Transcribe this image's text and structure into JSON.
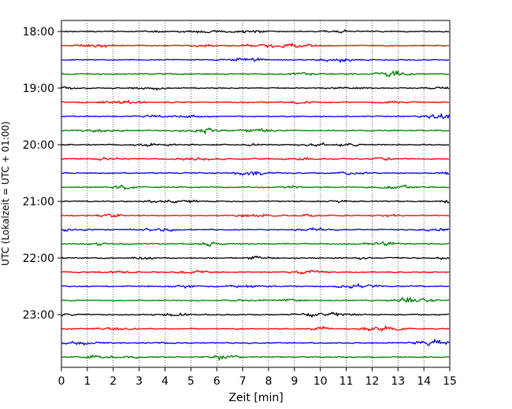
{
  "chart_data": {
    "type": "line",
    "title": "",
    "xlabel": "Zeit  [min]",
    "ylabel": "UTC (Lokalzeit = UTC + 01:00)",
    "xlim": [
      0,
      15
    ],
    "x_ticks": [
      "0",
      "1",
      "2",
      "3",
      "4",
      "5",
      "6",
      "7",
      "8",
      "9",
      "10",
      "11",
      "12",
      "13",
      "14",
      "15"
    ],
    "y_ticks": [
      "18:00",
      "19:00",
      "20:00",
      "21:00",
      "22:00",
      "23:00"
    ],
    "grid": "vertical dotted lines at each minute",
    "trace_interval_minutes": 15,
    "trace_colors": [
      "#000000",
      "#ff0000",
      "#0000ff",
      "#008000"
    ],
    "traces": [
      {
        "start": "18:00",
        "color": "#000000"
      },
      {
        "start": "18:15",
        "color": "#ff0000"
      },
      {
        "start": "18:30",
        "color": "#0000ff"
      },
      {
        "start": "18:45",
        "color": "#008000"
      },
      {
        "start": "19:00",
        "color": "#000000"
      },
      {
        "start": "19:15",
        "color": "#ff0000"
      },
      {
        "start": "19:30",
        "color": "#0000ff"
      },
      {
        "start": "19:45",
        "color": "#008000"
      },
      {
        "start": "20:00",
        "color": "#000000"
      },
      {
        "start": "20:15",
        "color": "#ff0000"
      },
      {
        "start": "20:30",
        "color": "#0000ff"
      },
      {
        "start": "20:45",
        "color": "#008000"
      },
      {
        "start": "21:00",
        "color": "#000000"
      },
      {
        "start": "21:15",
        "color": "#ff0000"
      },
      {
        "start": "21:30",
        "color": "#0000ff"
      },
      {
        "start": "21:45",
        "color": "#008000"
      },
      {
        "start": "22:00",
        "color": "#000000"
      },
      {
        "start": "22:15",
        "color": "#ff0000"
      },
      {
        "start": "22:30",
        "color": "#0000ff"
      },
      {
        "start": "22:45",
        "color": "#008000"
      },
      {
        "start": "23:00",
        "color": "#000000"
      },
      {
        "start": "23:15",
        "color": "#ff0000"
      },
      {
        "start": "23:30",
        "color": "#0000ff"
      },
      {
        "start": "23:45",
        "color": "#008000"
      }
    ]
  }
}
